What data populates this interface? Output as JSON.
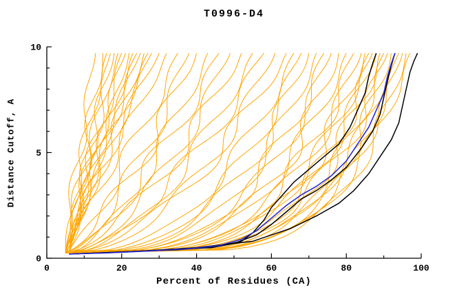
{
  "chart_data": {
    "type": "line",
    "title": "T0996-D4",
    "xlabel": "Percent of Residues (CA)",
    "ylabel": "Distance Cutoff, A",
    "xlim": [
      0,
      100
    ],
    "ylim": [
      0,
      10
    ],
    "x_major_ticks": [
      0,
      20,
      40,
      60,
      80,
      100
    ],
    "x_minor_tick_step": 10,
    "y_major_ticks": [
      0,
      5,
      10
    ],
    "y_minor_tick_step": 1,
    "grid": false,
    "legend": "none",
    "colors": {
      "ensemble": "#FFA500",
      "highlight": "#000000",
      "selected": "#2A2AD4"
    },
    "selected_series": {
      "name": "blue-model-curve",
      "color": "#2A2AD4",
      "points": [
        [
          6,
          0.2
        ],
        [
          16,
          0.25
        ],
        [
          28,
          0.35
        ],
        [
          38,
          0.45
        ],
        [
          46,
          0.6
        ],
        [
          52,
          0.9
        ],
        [
          56,
          1.3
        ],
        [
          60,
          1.9
        ],
        [
          64,
          2.5
        ],
        [
          68,
          3.0
        ],
        [
          72,
          3.4
        ],
        [
          76,
          3.9
        ],
        [
          80,
          4.6
        ],
        [
          83,
          5.4
        ],
        [
          86,
          6.2
        ],
        [
          88,
          7.0
        ],
        [
          90,
          7.8
        ],
        [
          91,
          8.6
        ],
        [
          92,
          9.2
        ],
        [
          93,
          9.7
        ]
      ]
    },
    "highlight_series": [
      {
        "name": "black-model-1",
        "points": [
          [
            6,
            0.2
          ],
          [
            20,
            0.3
          ],
          [
            35,
            0.4
          ],
          [
            45,
            0.55
          ],
          [
            52,
            0.8
          ],
          [
            55,
            1.2
          ],
          [
            58,
            1.8
          ],
          [
            60,
            2.4
          ],
          [
            63,
            3.0
          ],
          [
            66,
            3.6
          ],
          [
            70,
            4.2
          ],
          [
            74,
            4.8
          ],
          [
            78,
            5.4
          ],
          [
            81,
            6.2
          ],
          [
            83,
            7.0
          ],
          [
            85,
            7.8
          ],
          [
            86,
            8.6
          ],
          [
            87,
            9.2
          ],
          [
            88,
            9.7
          ]
        ]
      },
      {
        "name": "black-model-2",
        "points": [
          [
            6,
            0.2
          ],
          [
            18,
            0.28
          ],
          [
            32,
            0.4
          ],
          [
            44,
            0.5
          ],
          [
            50,
            0.7
          ],
          [
            56,
            1.1
          ],
          [
            60,
            1.6
          ],
          [
            64,
            2.2
          ],
          [
            68,
            2.8
          ],
          [
            72,
            3.2
          ],
          [
            76,
            3.7
          ],
          [
            80,
            4.3
          ],
          [
            84,
            5.2
          ],
          [
            87,
            6.0
          ],
          [
            89,
            6.8
          ],
          [
            90,
            7.6
          ],
          [
            91,
            8.4
          ],
          [
            92,
            9.1
          ],
          [
            93,
            9.7
          ]
        ]
      },
      {
        "name": "black-model-3",
        "points": [
          [
            6,
            0.2
          ],
          [
            22,
            0.3
          ],
          [
            40,
            0.5
          ],
          [
            55,
            0.8
          ],
          [
            65,
            1.4
          ],
          [
            72,
            2.0
          ],
          [
            78,
            2.6
          ],
          [
            82,
            3.2
          ],
          [
            86,
            4.0
          ],
          [
            89,
            4.8
          ],
          [
            92,
            5.6
          ],
          [
            94,
            6.4
          ],
          [
            95,
            7.2
          ],
          [
            96,
            8.0
          ],
          [
            97,
            8.8
          ],
          [
            98,
            9.3
          ],
          [
            99,
            9.7
          ]
        ]
      }
    ],
    "ensemble_curves": {
      "color": "#FFA500",
      "param_format": [
        "x_start_percent",
        "x_end_percent_at_top",
        "shape_exponent",
        "wiggle_amplitude"
      ],
      "y_start": 0.25,
      "y_end": 9.7,
      "curves": [
        [
          5,
          13,
          1.15,
          1.5
        ],
        [
          6,
          15,
          1.0,
          2.0
        ],
        [
          5,
          16,
          1.2,
          1.5
        ],
        [
          6,
          17,
          0.95,
          2.0
        ],
        [
          5,
          18,
          1.1,
          2.0
        ],
        [
          6,
          19,
          1.3,
          1.5
        ],
        [
          5,
          20,
          1.0,
          2.0
        ],
        [
          6,
          21,
          1.2,
          2.0
        ],
        [
          5,
          22,
          0.9,
          1.5
        ],
        [
          6,
          23,
          1.1,
          2.0
        ],
        [
          5,
          24,
          1.0,
          2.0
        ],
        [
          6,
          25,
          1.25,
          1.5
        ],
        [
          5,
          26,
          0.95,
          2.0
        ],
        [
          6,
          27,
          1.15,
          2.0
        ],
        [
          5,
          28,
          1.05,
          1.5
        ],
        [
          6,
          30,
          1.2,
          2.0
        ],
        [
          5,
          32,
          1.0,
          2.0
        ],
        [
          5,
          35,
          0.8,
          2.5
        ],
        [
          6,
          38,
          0.7,
          2.5
        ],
        [
          5,
          40,
          0.75,
          3.0
        ],
        [
          6,
          43,
          0.65,
          2.5
        ],
        [
          5,
          46,
          0.7,
          3.0
        ],
        [
          6,
          49,
          0.6,
          2.5
        ],
        [
          5,
          52,
          0.65,
          3.0
        ],
        [
          6,
          55,
          0.55,
          2.5
        ],
        [
          5,
          58,
          0.6,
          3.0
        ],
        [
          6,
          61,
          0.5,
          2.5
        ],
        [
          5,
          64,
          0.55,
          3.0
        ],
        [
          5,
          66,
          0.4,
          2.5
        ],
        [
          6,
          68,
          0.38,
          2.5
        ],
        [
          5,
          70,
          0.35,
          3.0
        ],
        [
          6,
          72,
          0.33,
          2.5
        ],
        [
          5,
          74,
          0.3,
          3.0
        ],
        [
          6,
          76,
          0.32,
          2.5
        ],
        [
          5,
          78,
          0.28,
          3.0
        ],
        [
          6,
          80,
          0.3,
          2.5
        ],
        [
          5,
          82,
          0.26,
          3.0
        ],
        [
          6,
          84,
          0.28,
          2.5
        ],
        [
          5,
          85,
          0.24,
          3.0
        ],
        [
          6,
          86,
          0.26,
          2.5
        ],
        [
          5,
          87,
          0.22,
          3.0
        ],
        [
          6,
          88,
          0.25,
          2.5
        ],
        [
          5,
          89,
          0.22,
          3.0
        ],
        [
          6,
          90,
          0.2,
          2.5
        ],
        [
          5,
          91,
          0.23,
          3.0
        ],
        [
          6,
          92,
          0.2,
          2.5
        ],
        [
          5,
          93,
          0.21,
          2.0
        ],
        [
          6,
          94,
          0.19,
          2.0
        ],
        [
          5,
          95,
          0.2,
          2.0
        ],
        [
          6,
          96,
          0.18,
          2.0
        ],
        [
          5,
          97,
          0.2,
          2.0
        ]
      ]
    }
  }
}
